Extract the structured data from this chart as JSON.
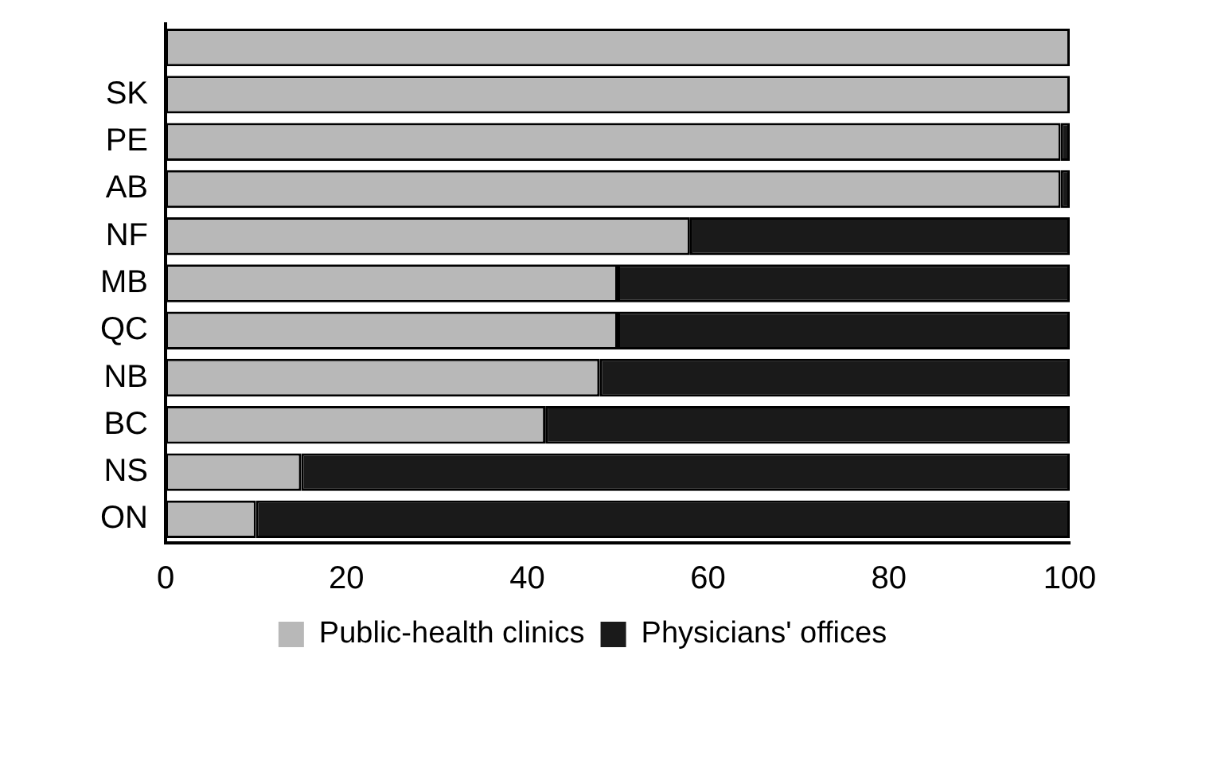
{
  "chart_data": {
    "type": "bar",
    "orientation": "horizontal",
    "stacked": true,
    "categories": [
      null,
      "SK",
      "PE",
      "AB",
      "NF",
      "MB",
      "QC",
      "NB",
      "BC",
      "NS",
      "ON"
    ],
    "series": [
      {
        "name": "Public-health clinics",
        "color": "#b8b8b8",
        "values": [
          100,
          100,
          99,
          99,
          58,
          50,
          50,
          48,
          42,
          15,
          10
        ]
      },
      {
        "name": "Physicians' offices",
        "color": "#1a1a1a",
        "values": [
          0,
          0,
          1,
          1,
          42,
          50,
          50,
          52,
          58,
          85,
          90
        ]
      }
    ],
    "xlim": [
      0,
      100
    ],
    "xticks": [
      0,
      20,
      40,
      60,
      80,
      100
    ],
    "grid": false,
    "legend": "bottom"
  }
}
